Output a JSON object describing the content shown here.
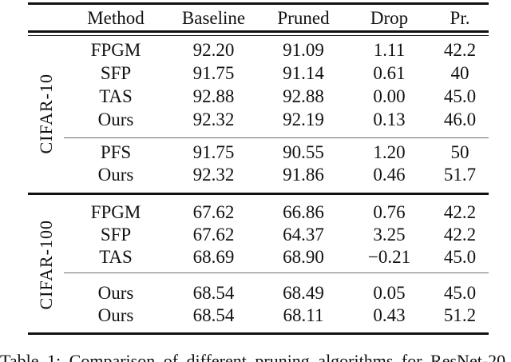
{
  "table": {
    "columns": [
      "Method",
      "Baseline",
      "Pruned",
      "Drop",
      "Pr."
    ],
    "groups": [
      {
        "label": "CIFAR-10",
        "blocks": [
          {
            "rows": [
              [
                "FPGM",
                "92.20",
                "91.09",
                "1.11",
                "42.2"
              ],
              [
                "SFP",
                "91.75",
                "91.14",
                "0.61",
                "40"
              ],
              [
                "TAS",
                "92.88",
                "92.88",
                "0.00",
                "45.0"
              ],
              [
                "Ours",
                "92.32",
                "92.19",
                "0.13",
                "46.0"
              ]
            ]
          },
          {
            "rows": [
              [
                "PFS",
                "91.75",
                "90.55",
                "1.20",
                "50"
              ],
              [
                "Ours",
                "92.32",
                "91.86",
                "0.46",
                "51.7"
              ]
            ]
          }
        ]
      },
      {
        "label": "CIFAR-100",
        "blocks": [
          {
            "rows": [
              [
                "FPGM",
                "67.62",
                "66.86",
                "0.76",
                "42.2"
              ],
              [
                "SFP",
                "67.62",
                "64.37",
                "3.25",
                "42.2"
              ],
              [
                "TAS",
                "68.69",
                "68.90",
                "−0.21",
                "45.0"
              ]
            ]
          },
          {
            "rows": [
              [
                "Ours",
                "68.54",
                "68.49",
                "0.05",
                "45.0"
              ],
              [
                "Ours",
                "68.54",
                "68.11",
                "0.43",
                "51.2"
              ]
            ]
          }
        ]
      }
    ],
    "caption": "Table 1: Comparison of different pruning algorithms for ResNet-20",
    "colors": {
      "text": "#111111",
      "rule": "#111111",
      "midrule": "#6e6e6e"
    }
  }
}
